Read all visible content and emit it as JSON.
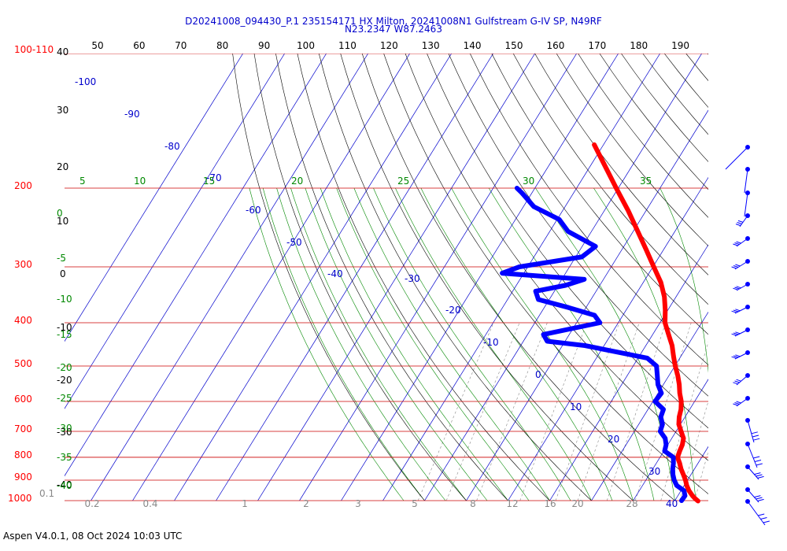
{
  "header": {
    "line1": "D20241008_094430_P.1 235154171 HX Milton, 20241008N1 Gulfstream G-IV SP, N49RF",
    "line2": "N23.2347 W87.2463"
  },
  "footer": "Aspen V4.0.1, 08 Oct 2024  10:03 UTC",
  "chart_data": {
    "type": "skew-t",
    "pressure_axis": {
      "labels": [
        "100-110",
        "200",
        "300",
        "400",
        "500",
        "600",
        "700",
        "800",
        "900",
        "1000"
      ],
      "values": [
        100,
        200,
        300,
        400,
        500,
        600,
        700,
        800,
        900,
        1000
      ]
    },
    "height_labels": [
      "40",
      "30",
      "20",
      "10",
      "0",
      "-10",
      "-20",
      "-30",
      "-40"
    ],
    "top_scale": [
      "50",
      "60",
      "70",
      "80",
      "90",
      "100",
      "110",
      "120",
      "130",
      "140",
      "150",
      "160",
      "170",
      "180",
      "190"
    ],
    "isotherm_labels": [
      "-100",
      "-90",
      "-80",
      "-70",
      "-60",
      "-50",
      "-40",
      "-30",
      "-20",
      "-10",
      "0",
      "10",
      "20",
      "30",
      "40"
    ],
    "mixing_ratio_labels": [
      "0.2",
      "0.4",
      "1",
      "2",
      "3",
      "5",
      "8",
      "12",
      "16",
      "20",
      "28"
    ],
    "mixing_label_low": "0.1",
    "adiabat_labels_top": [
      "5",
      "10",
      "15",
      "20",
      "25",
      "30",
      "35"
    ],
    "adiabat_labels_left": [
      "0",
      "-5",
      "-10",
      "-15",
      "-20",
      "-25",
      "-30",
      "-35",
      "-40"
    ],
    "colors": {
      "temperature": "#ff0000",
      "dewpoint": "#0000ff",
      "isobar": "#cc0000",
      "isotherm": "#0000cc",
      "adiabat": "#000000",
      "moist_adiabat": "#008800",
      "mixing": "#888888"
    },
    "series": [
      {
        "name": "",
        "color": "#ff0000",
        "points": [
          [
            1002,
            25.6
          ],
          [
            990,
            24.6
          ],
          [
            975,
            23.5
          ],
          [
            950,
            21.9
          ],
          [
            925,
            20.6
          ],
          [
            900,
            19.5
          ],
          [
            875,
            18.2
          ],
          [
            850,
            16.8
          ],
          [
            825,
            15.6
          ],
          [
            800,
            14.2
          ],
          [
            775,
            13.8
          ],
          [
            750,
            13.5
          ],
          [
            725,
            12.8
          ],
          [
            700,
            11.2
          ],
          [
            675,
            9.6
          ],
          [
            650,
            8.6
          ],
          [
            625,
            7.9
          ],
          [
            600,
            6.8
          ],
          [
            575,
            5.2
          ],
          [
            550,
            3.8
          ],
          [
            525,
            2.1
          ],
          [
            500,
            0.1
          ],
          [
            475,
            -1.8
          ],
          [
            450,
            -3.7
          ],
          [
            425,
            -6.2
          ],
          [
            400,
            -8.8
          ],
          [
            375,
            -10.6
          ],
          [
            350,
            -12.8
          ],
          [
            325,
            -15.8
          ],
          [
            300,
            -19.8
          ],
          [
            275,
            -24.1
          ],
          [
            250,
            -28.9
          ],
          [
            225,
            -34.2
          ],
          [
            200,
            -40.5
          ],
          [
            175,
            -47.5
          ],
          [
            160,
            -52.2
          ]
        ]
      },
      {
        "name": "",
        "color": "#0000ff",
        "points": [
          [
            1000,
            21.6
          ],
          [
            975,
            21.7
          ],
          [
            950,
            20.7
          ],
          [
            925,
            18.2
          ],
          [
            900,
            16.8
          ],
          [
            875,
            15.7
          ],
          [
            850,
            14.8
          ],
          [
            825,
            14.1
          ],
          [
            800,
            13.2
          ],
          [
            775,
            10.2
          ],
          [
            750,
            9.6
          ],
          [
            725,
            8.4
          ],
          [
            700,
            6.2
          ],
          [
            675,
            5.7
          ],
          [
            650,
            4.2
          ],
          [
            625,
            3.7
          ],
          [
            600,
            0.5
          ],
          [
            575,
            0.8
          ],
          [
            550,
            -1.3
          ],
          [
            525,
            -2.8
          ],
          [
            500,
            -4.4
          ],
          [
            480,
            -7.8
          ],
          [
            470,
            -13.2
          ],
          [
            450,
            -24.6
          ],
          [
            440,
            -34.3
          ],
          [
            425,
            -36.2
          ],
          [
            400,
            -24.4
          ],
          [
            385,
            -26.8
          ],
          [
            370,
            -34.2
          ],
          [
            355,
            -42.6
          ],
          [
            340,
            -44.5
          ],
          [
            330,
            -38.2
          ],
          [
            320,
            -34.6
          ],
          [
            310,
            -55.2
          ],
          [
            300,
            -52.0
          ],
          [
            285,
            -38.5
          ],
          [
            270,
            -36.8
          ],
          [
            250,
            -45.6
          ],
          [
            235,
            -49.5
          ],
          [
            220,
            -57.5
          ],
          [
            205,
            -62.4
          ],
          [
            200,
            -64.3
          ]
        ]
      }
    ]
  }
}
